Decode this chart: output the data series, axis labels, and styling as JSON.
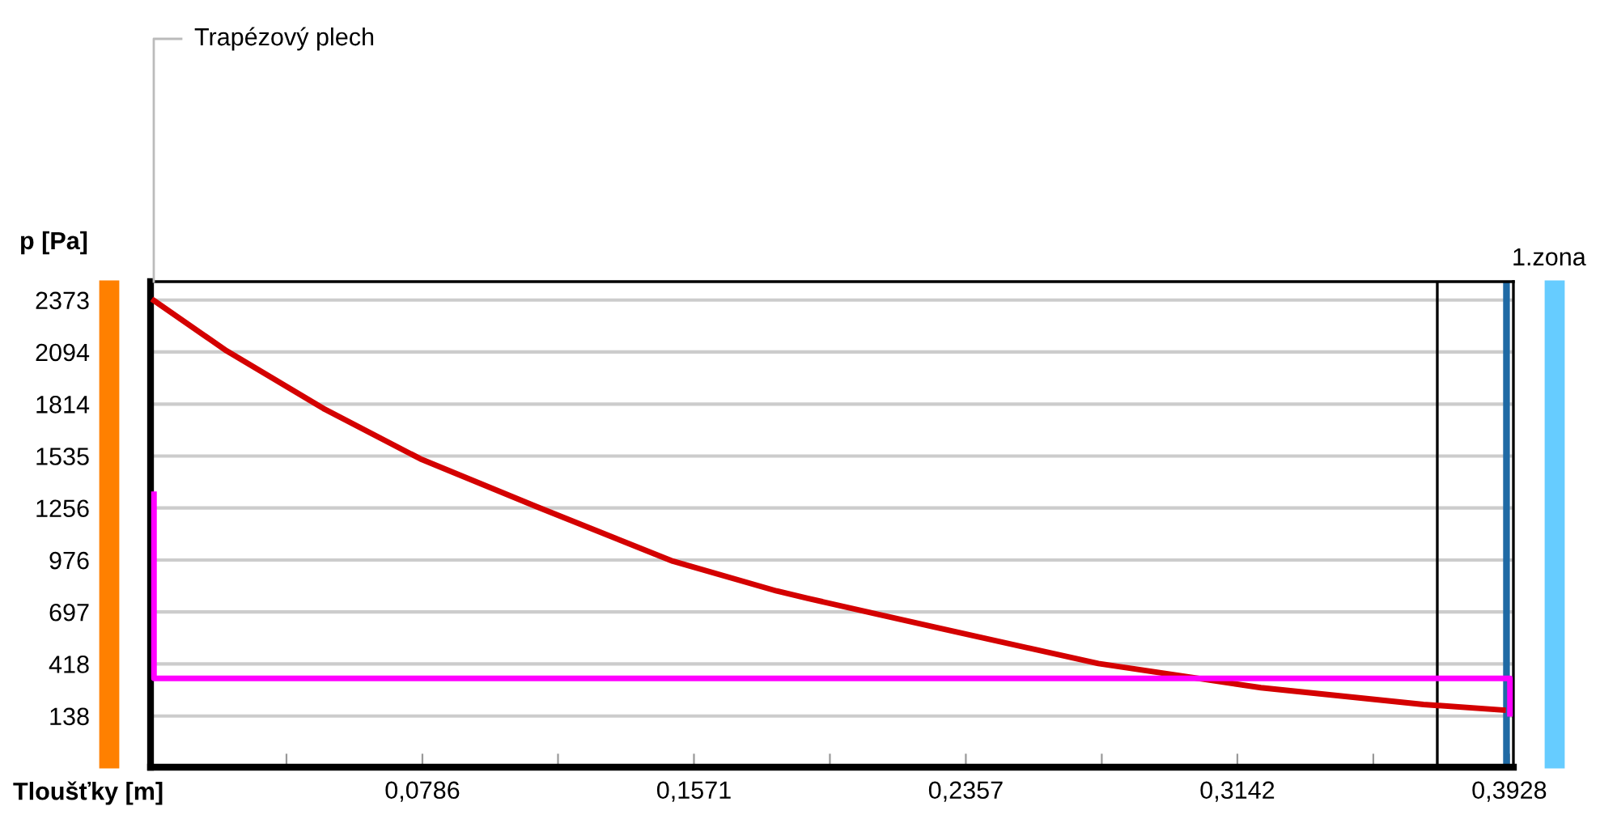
{
  "chart_data": {
    "type": "line",
    "xlabel": "Tloušťky [m]",
    "ylabel": "p [Pa]",
    "annotations": [
      "Trapézový plech",
      "1.zona"
    ],
    "xlim": [
      0,
      0.394
    ],
    "ylim": [
      -137,
      2472
    ],
    "xticks": [
      {
        "value": 0.0393,
        "label": null
      },
      {
        "value": 0.0786,
        "label": "0,0786"
      },
      {
        "value": 0.1178,
        "label": null
      },
      {
        "value": 0.1571,
        "label": "0,1571"
      },
      {
        "value": 0.1964,
        "label": null
      },
      {
        "value": 0.2357,
        "label": "0,2357"
      },
      {
        "value": 0.275,
        "label": null
      },
      {
        "value": 0.3142,
        "label": "0,3142"
      },
      {
        "value": 0.3535,
        "label": null
      },
      {
        "value": 0.3928,
        "label": "0,3928"
      }
    ],
    "yticks": [
      138,
      418,
      697,
      976,
      1256,
      1535,
      1814,
      2094,
      2373
    ],
    "grid": "y",
    "marker": "none",
    "line_style": "solid",
    "series": [
      {
        "color": "#d40000",
        "x": [
          0.001,
          0.022,
          0.05,
          0.078,
          0.112,
          0.151,
          0.181,
          0.19,
          0.228,
          0.274,
          0.321,
          0.368,
          0.391
        ],
        "values": [
          2370,
          2100,
          1790,
          1520,
          1260,
          970,
          810,
          770,
          610,
          420,
          290,
          200,
          170
        ]
      },
      {
        "color": "#ff00ff",
        "x": [
          0.001,
          0.001,
          0.393,
          0.393
        ],
        "values": [
          1330,
          340,
          340,
          150
        ]
      }
    ],
    "ref_lines": [
      {
        "axis": "x",
        "value": 0.372,
        "color": "#000000"
      },
      {
        "axis": "x",
        "value": 0.392,
        "color": "#1f6aa5"
      }
    ]
  }
}
